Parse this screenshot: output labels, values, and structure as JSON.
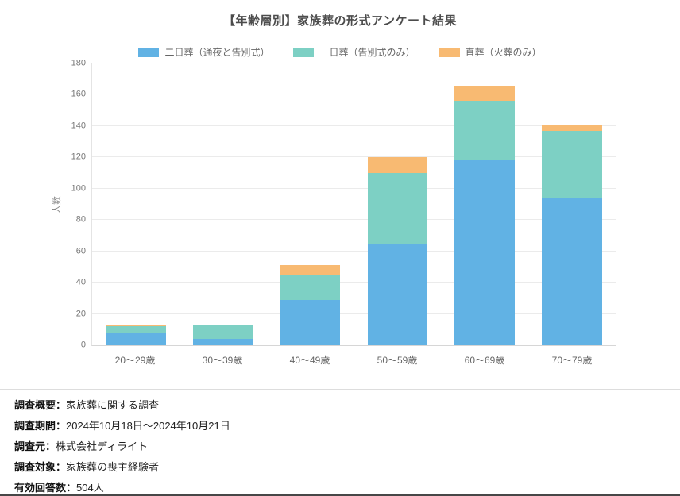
{
  "chart_data": {
    "type": "bar",
    "stacked": true,
    "title": "【年齢層別】家族葬の形式アンケート結果",
    "ylabel": "人数",
    "ylim": [
      0,
      180
    ],
    "ytick_step": 20,
    "grid": true,
    "legend_position": "top",
    "categories": [
      "20〜29歳",
      "30〜39歳",
      "40〜49歳",
      "50〜59歳",
      "60〜69歳",
      "70〜79歳"
    ],
    "series": [
      {
        "name": "二日葬（通夜と告別式）",
        "color": "#61b2e4",
        "values": [
          8,
          4,
          29,
          65,
          118,
          94
        ]
      },
      {
        "name": "一日葬（告別式のみ）",
        "color": "#7dd0c4",
        "values": [
          4,
          9,
          16,
          45,
          38,
          43
        ]
      },
      {
        "name": "直葬（火葬のみ）",
        "color": "#f8ba72",
        "values": [
          1,
          0,
          6,
          10,
          10,
          4
        ]
      }
    ]
  },
  "footer": {
    "rows": [
      {
        "label": "調査概要：",
        "value": "家族葬に関する調査"
      },
      {
        "label": "調査期間：",
        "value": "2024年10月18日〜2024年10月21日"
      },
      {
        "label": "調査元：",
        "value": "株式会社ディライト"
      },
      {
        "label": "調査対象：",
        "value": "家族葬の喪主経験者"
      },
      {
        "label": "有効回答数：",
        "value": "504人"
      }
    ]
  }
}
